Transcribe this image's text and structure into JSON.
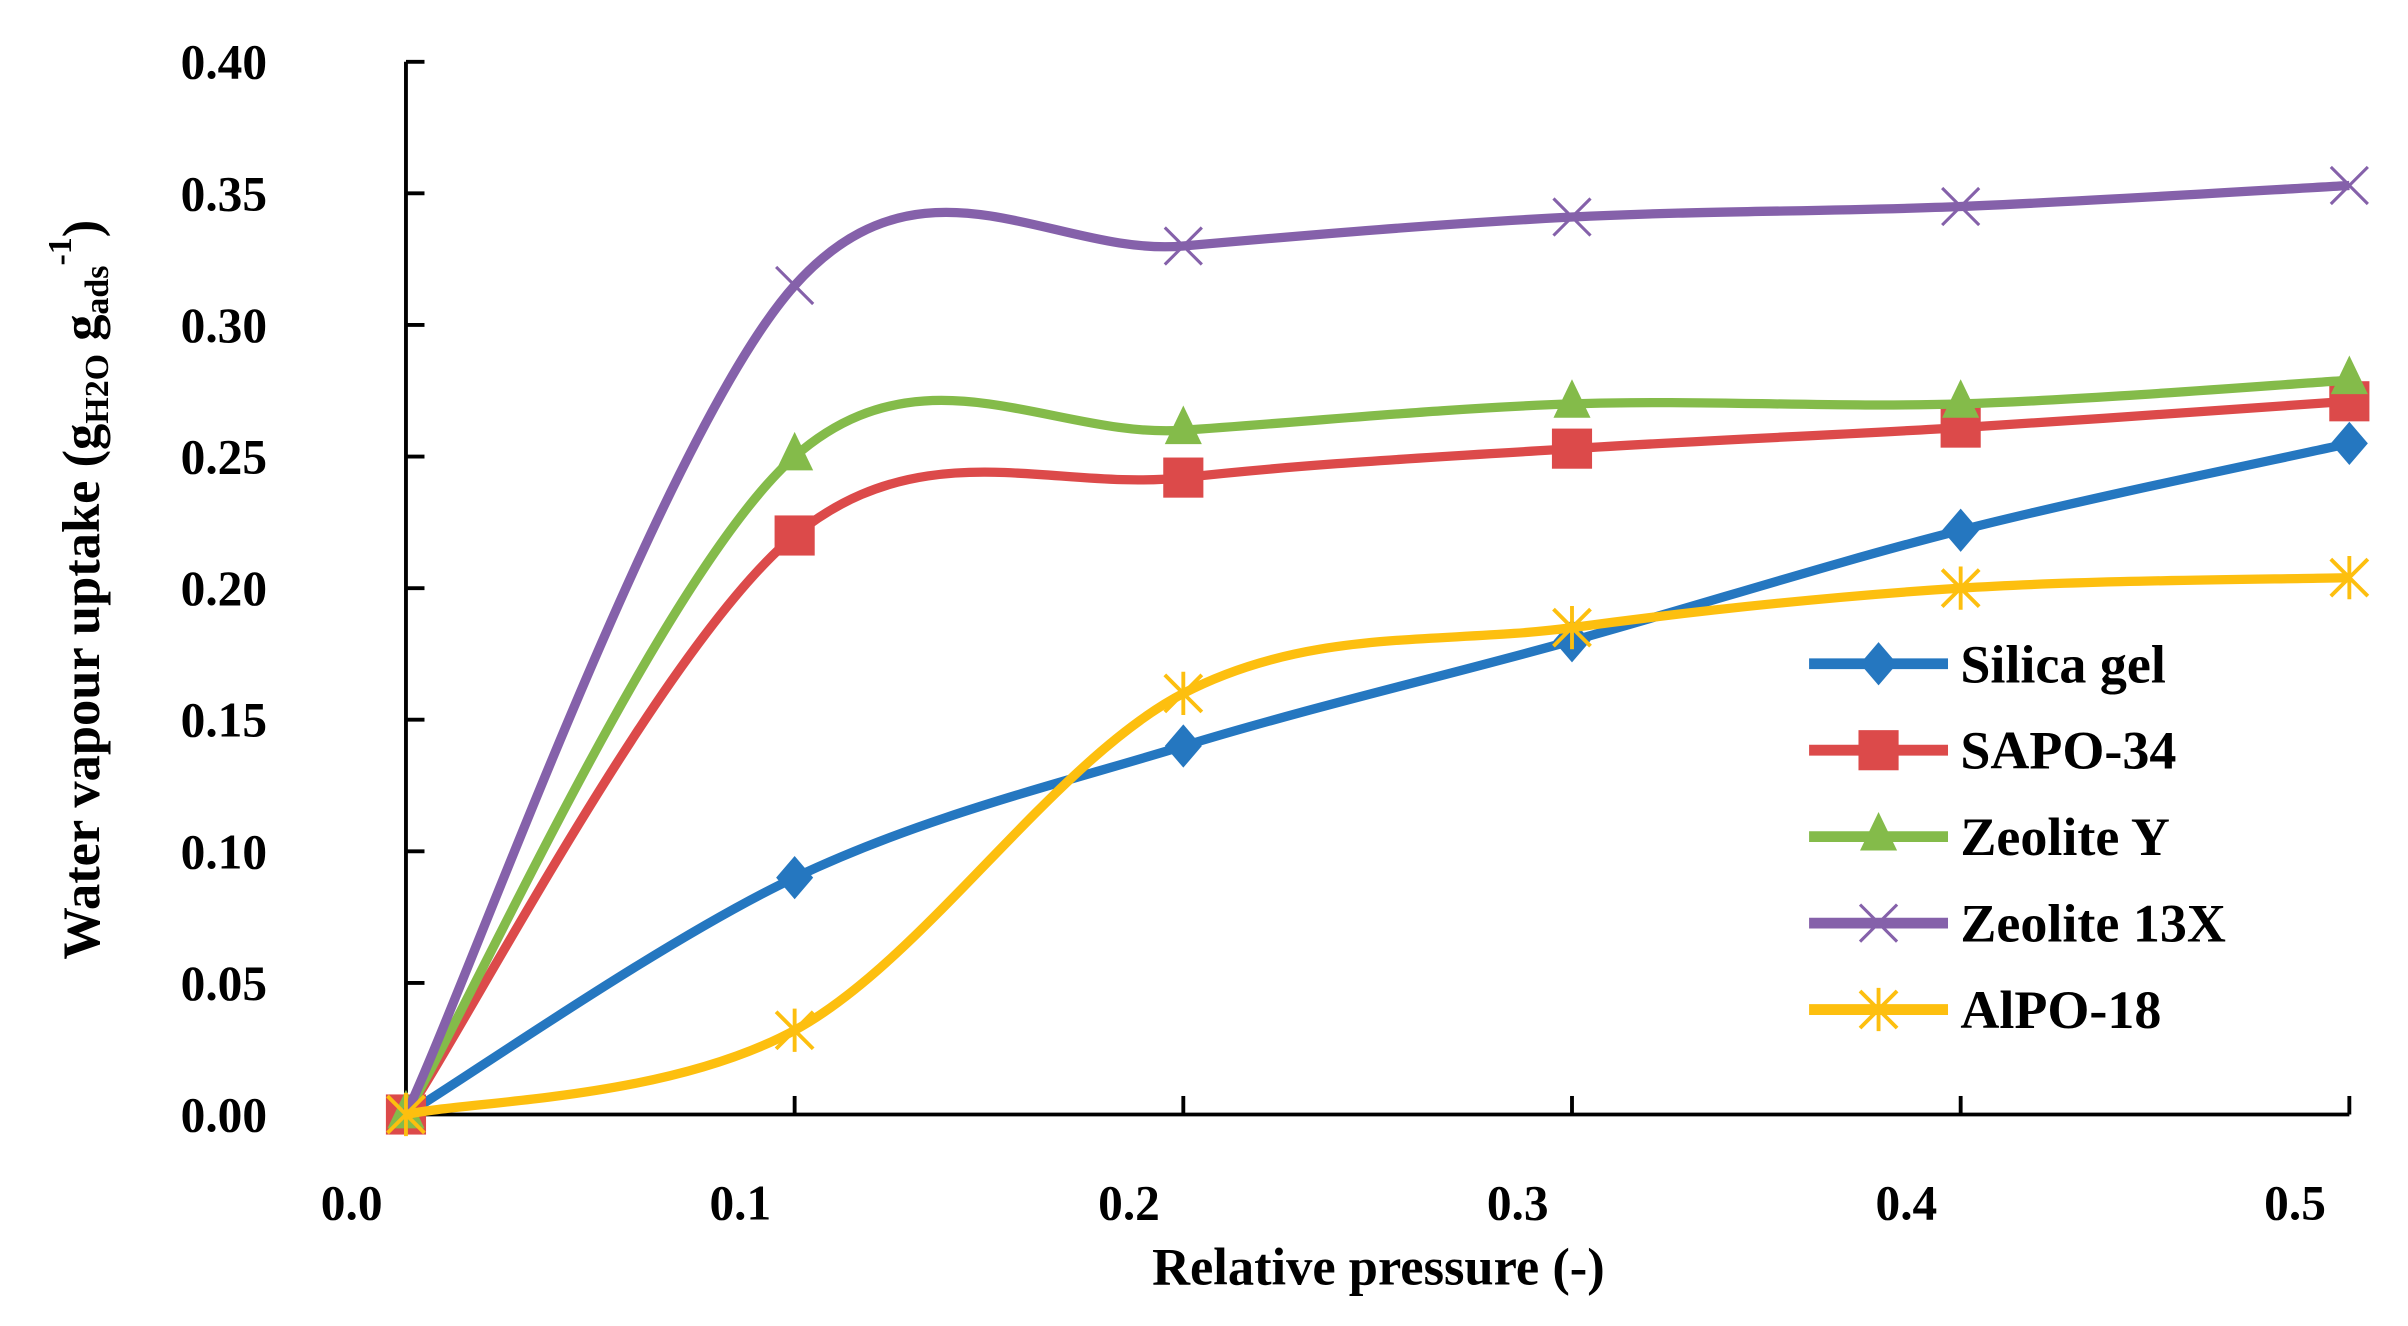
{
  "chart_data": {
    "type": "line",
    "title": "",
    "xlabel": "Relative pressure (-)",
    "ylabel_main": "Water vapour uptake (g",
    "ylabel_sub1": "H2O",
    "ylabel_mid": " g",
    "ylabel_sub2": "ads",
    "ylabel_sup": "-1",
    "ylabel_end": ")",
    "xlim": [
      0.01,
      0.51
    ],
    "ylim": [
      0,
      0.4
    ],
    "xticks": [
      "0.0",
      "0.1",
      "0.2",
      "0.3",
      "0.4",
      "0.5"
    ],
    "yticks": [
      "0.00",
      "0.05",
      "0.10",
      "0.15",
      "0.20",
      "0.25",
      "0.30",
      "0.35",
      "0.40"
    ],
    "grid": false,
    "legend_position": "bottom-right",
    "x": [
      0.01,
      0.11,
      0.21,
      0.31,
      0.41,
      0.51
    ],
    "series": [
      {
        "name": "Silica gel",
        "color": "#2577c0",
        "marker": "diamond",
        "values": [
          0,
          0.09,
          0.14,
          0.18,
          0.222,
          0.255
        ]
      },
      {
        "name": "SAPO-34",
        "color": "#dc4a4a",
        "marker": "square",
        "values": [
          0,
          0.22,
          0.242,
          0.253,
          0.261,
          0.271
        ]
      },
      {
        "name": "Zeolite Y",
        "color": "#84bb4a",
        "marker": "triangle",
        "values": [
          0,
          0.25,
          0.26,
          0.27,
          0.27,
          0.279
        ]
      },
      {
        "name": "Zeolite 13X",
        "color": "#8561aa",
        "marker": "x",
        "values": [
          0,
          0.315,
          0.33,
          0.341,
          0.345,
          0.353
        ]
      },
      {
        "name": "AlPO-18",
        "color": "#fdbf0f",
        "marker": "star",
        "values": [
          0,
          0.032,
          0.16,
          0.185,
          0.2,
          0.204
        ]
      }
    ]
  }
}
